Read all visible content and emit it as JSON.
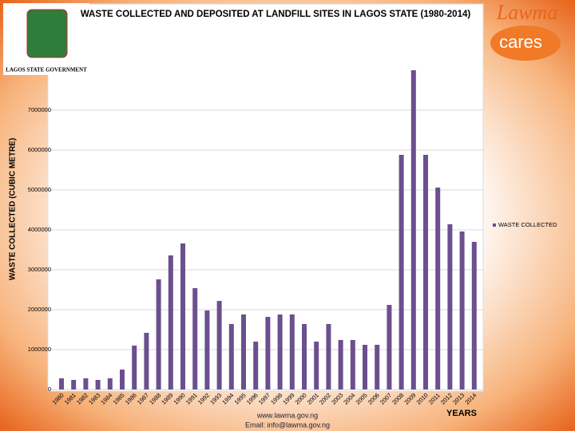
{
  "chart_data": {
    "type": "bar",
    "title": "WASTE COLLECTED AND DEPOSITED AT LANDFILL SITES IN LAGOS STATE (1980-2014)",
    "y_label": "WASTE COLLECTED (CUBIC METRE)",
    "x_label": "YEARS",
    "categories": [
      "1980",
      "1981",
      "1982",
      "1983",
      "1984",
      "1985",
      "1986",
      "1987",
      "1988",
      "1989",
      "1990",
      "1991",
      "1992",
      "1993",
      "1994",
      "1995",
      "1996",
      "1997",
      "1998",
      "1999",
      "2000",
      "2001",
      "2002",
      "2003",
      "2004",
      "2005",
      "2006",
      "2007",
      "2008",
      "2009",
      "2010",
      "2011",
      "2012",
      "2013",
      "2014"
    ],
    "series": [
      {
        "name": "WASTE COLLECTED",
        "color": "#6b4f8e",
        "values": [
          280000,
          240000,
          280000,
          240000,
          280000,
          500000,
          1100000,
          1420000,
          2760000,
          3360000,
          3660000,
          2540000,
          1980000,
          2220000,
          1640000,
          1880000,
          1200000,
          1820000,
          1880000,
          1880000,
          1640000,
          1200000,
          1640000,
          1240000,
          1240000,
          1120000,
          1120000,
          2120000,
          5880000,
          8000000,
          5880000,
          5060000,
          4140000,
          3960000,
          3700000
        ]
      }
    ],
    "ylim": [
      0,
      9500000
    ],
    "yticks": [
      0,
      1000000,
      2000000,
      3000000,
      4000000,
      5000000,
      6000000,
      7000000
    ],
    "grid": true,
    "legend": "right"
  },
  "page": {
    "government": "LAGOS STATE GOVERNMENT",
    "brand": "Lawma",
    "slogan": "cares",
    "website": "www.lawma.gov.ng",
    "email": "Email: info@lawma.gov.ng"
  }
}
